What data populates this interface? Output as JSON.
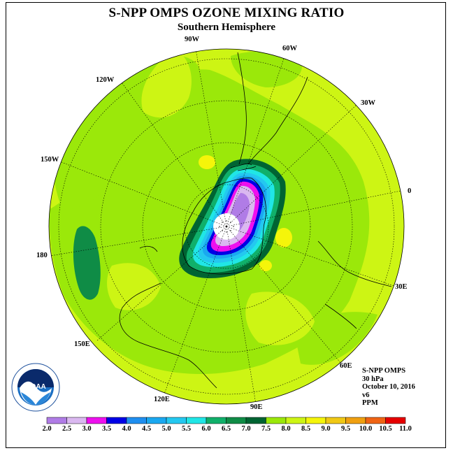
{
  "title": "S-NPP OMPS OZONE MIXING RATIO",
  "subtitle": "Southern Hemisphere",
  "longitude_labels": [
    "90W",
    "60W",
    "120W",
    "30W",
    "150W",
    "0",
    "180",
    "30E",
    "150E",
    "60E",
    "120E",
    "90E"
  ],
  "info": {
    "instrument": "S-NPP OMPS",
    "level": "30 hPa",
    "date": "October 10, 2016",
    "version": "v6",
    "units": "PPM"
  },
  "colorbar": {
    "ticks": [
      "2.0",
      "2.5",
      "3.0",
      "3.5",
      "4.0",
      "4.5",
      "5.0",
      "5.5",
      "6.0",
      "6.5",
      "7.0",
      "7.5",
      "8.0",
      "8.5",
      "9.0",
      "9.5",
      "10.0",
      "10.5",
      "11.0"
    ],
    "colors": [
      "#b07ce6",
      "#dab8f0",
      "#ee10ee",
      "#0000e6",
      "#1f8ff0",
      "#1aa8f0",
      "#24c8f0",
      "#20e6e6",
      "#10b06a",
      "#0f8c46",
      "#006432",
      "#9be80a",
      "#cdf514",
      "#f5f50a",
      "#f0c814",
      "#f0a010",
      "#f06414",
      "#e60000",
      "#7a4a28"
    ]
  },
  "logo": {
    "text": "NOAA"
  }
}
